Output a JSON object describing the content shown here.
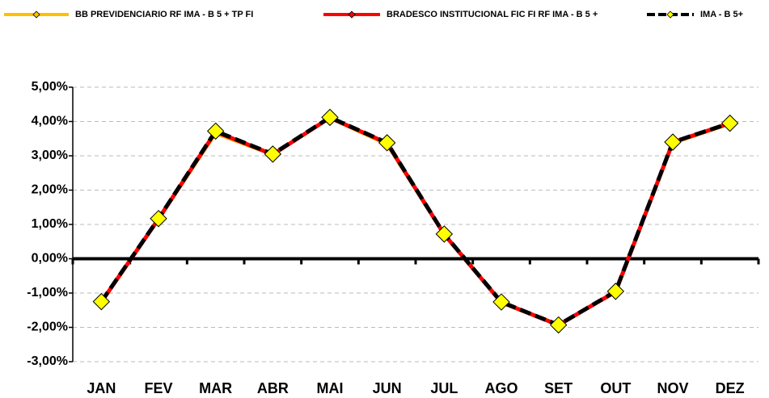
{
  "chart_data": {
    "type": "line",
    "categories": [
      "JAN",
      "FEV",
      "MAR",
      "ABR",
      "MAI",
      "JUN",
      "JUL",
      "AGO",
      "SET",
      "OUT",
      "NOV",
      "DEZ"
    ],
    "series": [
      {
        "name": "BB PREVIDENCIARIO RF IMA - B 5 + TP FI",
        "color": "#FFC000",
        "values": [
          -1.27,
          1.15,
          3.65,
          3.03,
          4.1,
          3.33,
          0.7,
          -1.28,
          -1.94,
          -0.97,
          3.37,
          3.93
        ]
      },
      {
        "name": "BRADESCO INSTITUCIONAL FIC FI RF IMA - B 5 +",
        "color": "#FF0000",
        "values": [
          -1.26,
          1.16,
          3.7,
          3.04,
          4.11,
          3.37,
          0.71,
          -1.27,
          -1.93,
          -0.96,
          3.39,
          3.95
        ]
      },
      {
        "name": "IMA - B 5+",
        "color": "#000000",
        "marker_color": "#FFFF00",
        "values": [
          -1.25,
          1.17,
          3.72,
          3.05,
          4.12,
          3.38,
          0.72,
          -1.26,
          -1.93,
          -0.95,
          3.4,
          3.95
        ]
      }
    ],
    "ylim": [
      -3,
      5
    ],
    "yticks": [
      {
        "value": -3,
        "label": "-3,00%"
      },
      {
        "value": -2,
        "label": "-2,00%"
      },
      {
        "value": -1,
        "label": "-1,00%"
      },
      {
        "value": 0,
        "label": "0,00%"
      },
      {
        "value": 1,
        "label": "1,00%"
      },
      {
        "value": 2,
        "label": "2,00%"
      },
      {
        "value": 3,
        "label": "3,00%"
      },
      {
        "value": 4,
        "label": "4,00%"
      },
      {
        "value": 5,
        "label": "5,00%"
      }
    ],
    "grid": true,
    "legend": "top"
  }
}
